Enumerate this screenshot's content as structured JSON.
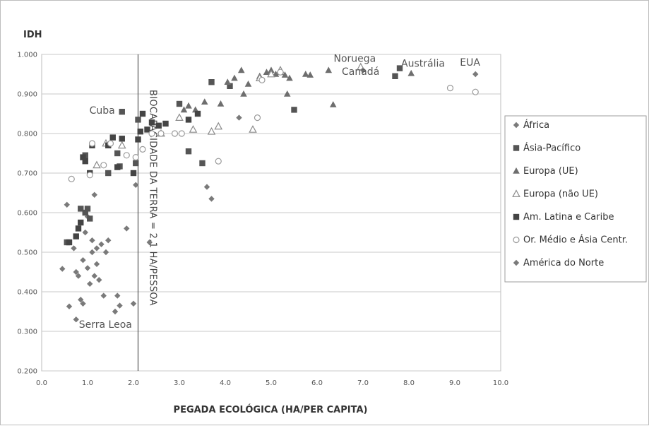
{
  "chart_data": {
    "type": "scatter",
    "title": "",
    "ylabel": "IDH",
    "xlabel": "PEGADA ECOLÓGICA (HA/PER CAPITA)",
    "xlim": [
      0,
      10
    ],
    "ylim": [
      0.2,
      1.0
    ],
    "x_ticks": [
      "0.0",
      "1.0",
      "2.0",
      "3.0",
      "4.0",
      "5.0",
      "6.0",
      "7.0",
      "8.0",
      "9.0",
      "10.0"
    ],
    "y_ticks": [
      "0.200",
      "0.300",
      "0.400",
      "0.500",
      "0.600",
      "0.700",
      "0.800",
      "0.900",
      "1.000"
    ],
    "grid": "horizontal",
    "legend_position": "right",
    "reference_line": {
      "x": 2.1,
      "label": "BIOCAPACIDADE DA TERRA = 2,1 HA/PESSOA"
    },
    "annotations": [
      {
        "text": "Cuba",
        "x": 1.75,
        "y": 0.857
      },
      {
        "text": "Serra Leoa",
        "x": 0.75,
        "y": 0.33
      },
      {
        "text": "Noruega",
        "x": 6.9,
        "y": 0.962
      },
      {
        "text": "Canadá",
        "x": 7.0,
        "y": 0.955
      },
      {
        "text": "Austrália",
        "x": 7.8,
        "y": 0.963
      },
      {
        "text": "EUA",
        "x": 9.45,
        "y": 0.95
      }
    ],
    "series": [
      {
        "name": "África",
        "marker": "diamond",
        "color": "#7a7a7a",
        "points": [
          [
            0.45,
            0.458
          ],
          [
            0.55,
            0.62
          ],
          [
            0.6,
            0.363
          ],
          [
            0.7,
            0.51
          ],
          [
            0.75,
            0.45
          ],
          [
            0.75,
            0.33
          ],
          [
            0.8,
            0.44
          ],
          [
            0.85,
            0.38
          ],
          [
            0.9,
            0.48
          ],
          [
            0.9,
            0.37
          ],
          [
            0.95,
            0.55
          ],
          [
            1.0,
            0.46
          ],
          [
            1.0,
            0.59
          ],
          [
            1.05,
            0.42
          ],
          [
            1.1,
            0.5
          ],
          [
            1.1,
            0.53
          ],
          [
            1.15,
            0.645
          ],
          [
            1.15,
            0.44
          ],
          [
            1.2,
            0.51
          ],
          [
            1.2,
            0.47
          ],
          [
            1.25,
            0.43
          ],
          [
            1.3,
            0.52
          ],
          [
            1.35,
            0.39
          ],
          [
            1.4,
            0.5
          ],
          [
            1.45,
            0.53
          ],
          [
            1.6,
            0.35
          ],
          [
            1.65,
            0.39
          ],
          [
            1.7,
            0.365
          ],
          [
            1.85,
            0.56
          ],
          [
            2.0,
            0.37
          ],
          [
            2.05,
            0.67
          ],
          [
            2.35,
            0.525
          ],
          [
            3.6,
            0.665
          ],
          [
            3.7,
            0.635
          ],
          [
            4.3,
            0.84
          ]
        ]
      },
      {
        "name": "Ásia-Pacífico",
        "marker": "square",
        "color": "#555555",
        "points": [
          [
            0.55,
            0.525
          ],
          [
            0.85,
            0.61
          ],
          [
            0.95,
            0.6
          ],
          [
            0.95,
            0.745
          ],
          [
            1.0,
            0.61
          ],
          [
            1.05,
            0.585
          ],
          [
            1.45,
            0.7
          ],
          [
            1.65,
            0.75
          ],
          [
            1.7,
            0.717
          ],
          [
            1.75,
            0.855
          ],
          [
            2.05,
            0.725
          ],
          [
            2.1,
            0.835
          ],
          [
            3.0,
            0.875
          ],
          [
            3.2,
            0.755
          ],
          [
            3.5,
            0.725
          ],
          [
            3.7,
            0.93
          ],
          [
            4.1,
            0.92
          ],
          [
            5.5,
            0.86
          ],
          [
            7.7,
            0.945
          ],
          [
            7.8,
            0.965
          ]
        ]
      },
      {
        "name": "Europa (UE)",
        "marker": "triangle",
        "color": "#6e6e6e",
        "points": [
          [
            3.1,
            0.86
          ],
          [
            3.2,
            0.87
          ],
          [
            3.35,
            0.86
          ],
          [
            3.55,
            0.88
          ],
          [
            3.9,
            0.875
          ],
          [
            4.05,
            0.93
          ],
          [
            4.2,
            0.94
          ],
          [
            4.35,
            0.96
          ],
          [
            4.4,
            0.9
          ],
          [
            4.5,
            0.925
          ],
          [
            4.75,
            0.945
          ],
          [
            4.9,
            0.955
          ],
          [
            5.0,
            0.96
          ],
          [
            5.1,
            0.95
          ],
          [
            5.2,
            0.955
          ],
          [
            5.3,
            0.948
          ],
          [
            5.4,
            0.94
          ],
          [
            5.35,
            0.9
          ],
          [
            5.75,
            0.95
          ],
          [
            5.85,
            0.948
          ],
          [
            6.25,
            0.96
          ],
          [
            6.35,
            0.873
          ],
          [
            8.05,
            0.952
          ]
        ]
      },
      {
        "name": "Europa (não UE)",
        "marker": "triangle-open",
        "color": "#8a8a8a",
        "points": [
          [
            1.2,
            0.72
          ],
          [
            1.4,
            0.775
          ],
          [
            1.75,
            0.77
          ],
          [
            2.6,
            0.8
          ],
          [
            3.0,
            0.84
          ],
          [
            3.3,
            0.81
          ],
          [
            3.7,
            0.805
          ],
          [
            3.85,
            0.818
          ],
          [
            4.6,
            0.81
          ],
          [
            4.75,
            0.94
          ],
          [
            5.0,
            0.95
          ],
          [
            5.2,
            0.96
          ],
          [
            6.95,
            0.968
          ]
        ]
      },
      {
        "name": "Am. Latina e Caribe",
        "marker": "square",
        "color": "#444444",
        "points": [
          [
            0.6,
            0.525
          ],
          [
            0.75,
            0.54
          ],
          [
            0.8,
            0.56
          ],
          [
            0.85,
            0.575
          ],
          [
            0.9,
            0.74
          ],
          [
            0.95,
            0.73
          ],
          [
            1.05,
            0.7
          ],
          [
            1.1,
            0.77
          ],
          [
            1.45,
            0.77
          ],
          [
            1.55,
            0.79
          ],
          [
            1.65,
            0.715
          ],
          [
            1.75,
            0.787
          ],
          [
            2.0,
            0.7
          ],
          [
            2.1,
            0.785
          ],
          [
            2.15,
            0.805
          ],
          [
            2.2,
            0.85
          ],
          [
            2.3,
            0.81
          ],
          [
            2.4,
            0.828
          ],
          [
            2.55,
            0.82
          ],
          [
            2.7,
            0.825
          ],
          [
            3.2,
            0.835
          ],
          [
            3.4,
            0.85
          ]
        ]
      },
      {
        "name": "Or. Médio e Ásia Centr.",
        "marker": "circle-open",
        "color": "#9a9a9a",
        "points": [
          [
            0.65,
            0.685
          ],
          [
            1.05,
            0.695
          ],
          [
            1.1,
            0.775
          ],
          [
            1.35,
            0.72
          ],
          [
            1.5,
            0.775
          ],
          [
            1.85,
            0.745
          ],
          [
            2.05,
            0.74
          ],
          [
            2.2,
            0.76
          ],
          [
            2.4,
            0.8
          ],
          [
            2.6,
            0.8
          ],
          [
            2.9,
            0.8
          ],
          [
            3.05,
            0.8
          ],
          [
            3.85,
            0.73
          ],
          [
            4.7,
            0.84
          ],
          [
            4.8,
            0.935
          ],
          [
            5.2,
            0.955
          ],
          [
            8.9,
            0.915
          ],
          [
            9.45,
            0.905
          ]
        ]
      },
      {
        "name": "América do Norte",
        "marker": "diamond",
        "color": "#7a7a7a",
        "points": [
          [
            7.0,
            0.96
          ],
          [
            9.45,
            0.95
          ]
        ]
      }
    ]
  }
}
